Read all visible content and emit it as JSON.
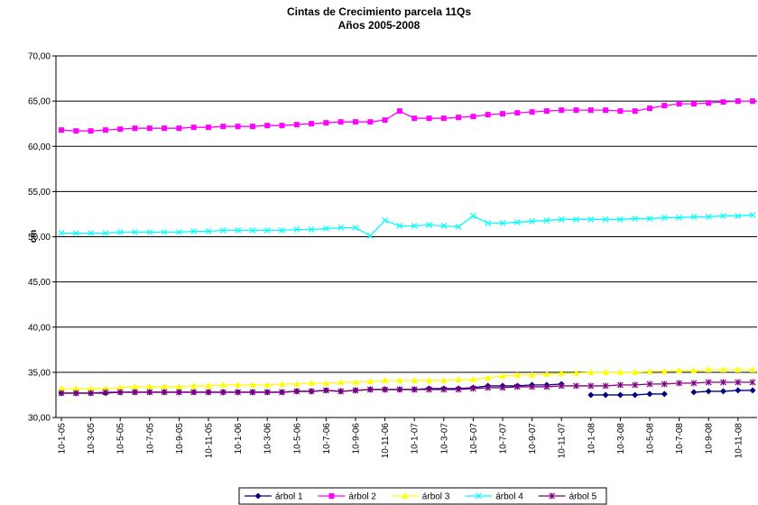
{
  "chart_data": {
    "type": "line",
    "title": "Cintas de Crecimiento parcela 11Qs",
    "subtitle": "Años 2005-2008",
    "y_label": "cm",
    "categories": [
      "10-1-05",
      null,
      "10-3-05",
      null,
      "10-5-05",
      null,
      "10-7-05",
      null,
      "10-9-05",
      null,
      "10-11-05",
      null,
      "10-1-06",
      null,
      "10-3-06",
      null,
      "10-5-06",
      null,
      "10-7-06",
      null,
      "10-9-06",
      null,
      "10-11-06",
      null,
      "10-1-07",
      null,
      "10-3-07",
      null,
      "10-5-07",
      null,
      "10-7-07",
      null,
      "10-9-07",
      null,
      "10-11-07",
      null,
      "10-1-08",
      null,
      "10-3-08",
      null,
      "10-5-08",
      null,
      "10-7-08",
      null,
      "10-9-08",
      null,
      "10-11-08",
      null
    ],
    "ylim": [
      30,
      70
    ],
    "yticks": [
      {
        "value": 30,
        "label": "30,00"
      },
      {
        "value": 35,
        "label": "35,00"
      },
      {
        "value": 40,
        "label": "40,00"
      },
      {
        "value": 45,
        "label": "45,00"
      },
      {
        "value": 50,
        "label": "50,00"
      },
      {
        "value": 55,
        "label": "55,00"
      },
      {
        "value": 60,
        "label": "60,00"
      },
      {
        "value": 65,
        "label": "65,00"
      },
      {
        "value": 70,
        "label": "70,00"
      }
    ],
    "grid": true,
    "legend": "bottom",
    "series": [
      {
        "name": "árbol 1",
        "color": "#000080",
        "marker": "diamond",
        "values": [
          32.7,
          32.7,
          32.7,
          32.7,
          32.8,
          32.8,
          32.8,
          32.8,
          32.8,
          32.8,
          32.8,
          32.8,
          32.8,
          32.8,
          32.8,
          32.8,
          32.9,
          32.9,
          33.0,
          32.9,
          33.0,
          33.1,
          33.1,
          33.1,
          33.1,
          33.2,
          33.2,
          33.2,
          33.3,
          33.5,
          33.5,
          33.5,
          33.6,
          33.6,
          33.7,
          null,
          32.5,
          32.5,
          32.5,
          32.5,
          32.6,
          32.6,
          null,
          32.8,
          32.9,
          32.9,
          33.0,
          33.0
        ]
      },
      {
        "name": "árbol 2",
        "color": "#ff00ff",
        "marker": "square",
        "values": [
          61.8,
          61.7,
          61.7,
          61.8,
          61.9,
          62.0,
          62.0,
          62.0,
          62.0,
          62.1,
          62.1,
          62.2,
          62.2,
          62.2,
          62.3,
          62.3,
          62.4,
          62.5,
          62.6,
          62.7,
          62.7,
          62.7,
          62.9,
          63.9,
          63.1,
          63.1,
          63.1,
          63.2,
          63.3,
          63.5,
          63.6,
          63.7,
          63.8,
          63.9,
          64.0,
          64.0,
          64.0,
          64.0,
          63.9,
          63.9,
          64.2,
          64.5,
          64.7,
          64.7,
          64.8,
          64.9,
          65.0,
          65.0
        ]
      },
      {
        "name": "árbol 3",
        "color": "#ffff00",
        "marker": "triangle",
        "values": [
          33.2,
          33.2,
          33.2,
          33.2,
          33.3,
          33.4,
          33.4,
          33.4,
          33.4,
          33.5,
          33.5,
          33.6,
          33.6,
          33.6,
          33.6,
          33.7,
          33.7,
          33.8,
          33.8,
          33.9,
          33.9,
          34.0,
          34.1,
          34.1,
          34.1,
          34.1,
          34.1,
          34.2,
          34.2,
          34.4,
          34.6,
          34.7,
          34.7,
          34.8,
          34.9,
          34.9,
          35.0,
          35.0,
          35.0,
          35.0,
          35.1,
          35.1,
          35.2,
          35.2,
          35.3,
          35.3,
          35.3,
          35.3
        ]
      },
      {
        "name": "árbol 4",
        "color": "#00ffff",
        "marker": "x",
        "values": [
          50.4,
          50.4,
          50.4,
          50.4,
          50.5,
          50.5,
          50.5,
          50.5,
          50.5,
          50.6,
          50.6,
          50.7,
          50.7,
          50.7,
          50.7,
          50.7,
          50.8,
          50.8,
          50.9,
          51.0,
          51.0,
          50.1,
          51.8,
          51.2,
          51.2,
          51.3,
          51.2,
          51.1,
          52.3,
          51.5,
          51.5,
          51.6,
          51.7,
          51.8,
          51.9,
          51.9,
          51.9,
          51.9,
          51.9,
          52.0,
          52.0,
          52.1,
          52.1,
          52.2,
          52.2,
          52.3,
          52.3,
          52.4
        ]
      },
      {
        "name": "árbol 5",
        "color": "#800080",
        "marker": "star",
        "values": [
          32.7,
          32.7,
          32.7,
          32.8,
          32.8,
          32.8,
          32.8,
          32.8,
          32.8,
          32.8,
          32.8,
          32.8,
          32.8,
          32.8,
          32.8,
          32.8,
          32.9,
          32.9,
          33.0,
          32.9,
          33.0,
          33.1,
          33.1,
          33.1,
          33.1,
          33.1,
          33.1,
          33.1,
          33.2,
          33.3,
          33.3,
          33.4,
          33.4,
          33.4,
          33.5,
          33.5,
          33.5,
          33.5,
          33.6,
          33.6,
          33.7,
          33.7,
          33.8,
          33.8,
          33.9,
          33.9,
          33.9,
          33.9
        ]
      }
    ]
  }
}
